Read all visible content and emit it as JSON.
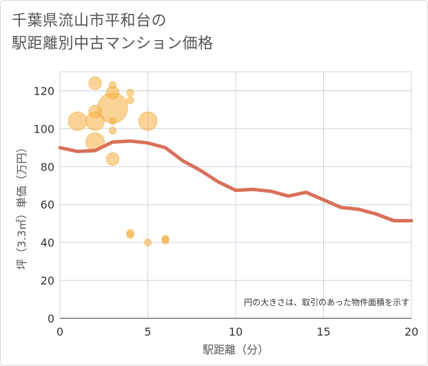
{
  "chart_data": {
    "type": "scatter",
    "title_lines": [
      "千葉県流山市平和台の",
      "駅距離別中古マンション価格"
    ],
    "xlabel": "駅距離（分）",
    "ylabel": "坪（3.3㎡）単価（万円）",
    "xlim": [
      0,
      20
    ],
    "ylim": [
      0,
      130
    ],
    "x_ticks": [
      0,
      5,
      10,
      15,
      20
    ],
    "y_ticks": [
      0,
      20,
      40,
      60,
      80,
      100,
      120
    ],
    "grid": true,
    "annotation": "円の大きさは、取引のあった物件面積を示す",
    "bubble_color": "#f5b041",
    "line_color": "#d9705a",
    "bubbles": [
      {
        "x": 1,
        "y": 104,
        "size": 3
      },
      {
        "x": 2,
        "y": 124,
        "size": 2
      },
      {
        "x": 2,
        "y": 109,
        "size": 2
      },
      {
        "x": 2,
        "y": 104,
        "size": 3
      },
      {
        "x": 2,
        "y": 93,
        "size": 3
      },
      {
        "x": 3,
        "y": 123,
        "size": 1
      },
      {
        "x": 3,
        "y": 119,
        "size": 2
      },
      {
        "x": 3,
        "y": 111,
        "size": 5
      },
      {
        "x": 3,
        "y": 104,
        "size": 1
      },
      {
        "x": 3,
        "y": 99,
        "size": 1
      },
      {
        "x": 3,
        "y": 84,
        "size": 2
      },
      {
        "x": 4,
        "y": 119,
        "size": 1
      },
      {
        "x": 4,
        "y": 115,
        "size": 1
      },
      {
        "x": 4,
        "y": 45,
        "size": 1
      },
      {
        "x": 4,
        "y": 44,
        "size": 1
      },
      {
        "x": 5,
        "y": 104,
        "size": 3
      },
      {
        "x": 5,
        "y": 40,
        "size": 1
      },
      {
        "x": 6,
        "y": 42,
        "size": 1
      },
      {
        "x": 6,
        "y": 41,
        "size": 1
      }
    ],
    "trend": {
      "x": [
        0,
        1,
        2,
        3,
        4,
        5,
        6,
        7,
        8,
        9,
        10,
        11,
        12,
        13,
        14,
        15,
        16,
        17,
        18,
        19,
        20
      ],
      "y": [
        90,
        88,
        88.5,
        93,
        93.5,
        92.5,
        90,
        83,
        78,
        72,
        67.5,
        68,
        67,
        64.5,
        66.5,
        62.5,
        58.5,
        57.5,
        55,
        51.5,
        51.5
      ]
    }
  }
}
